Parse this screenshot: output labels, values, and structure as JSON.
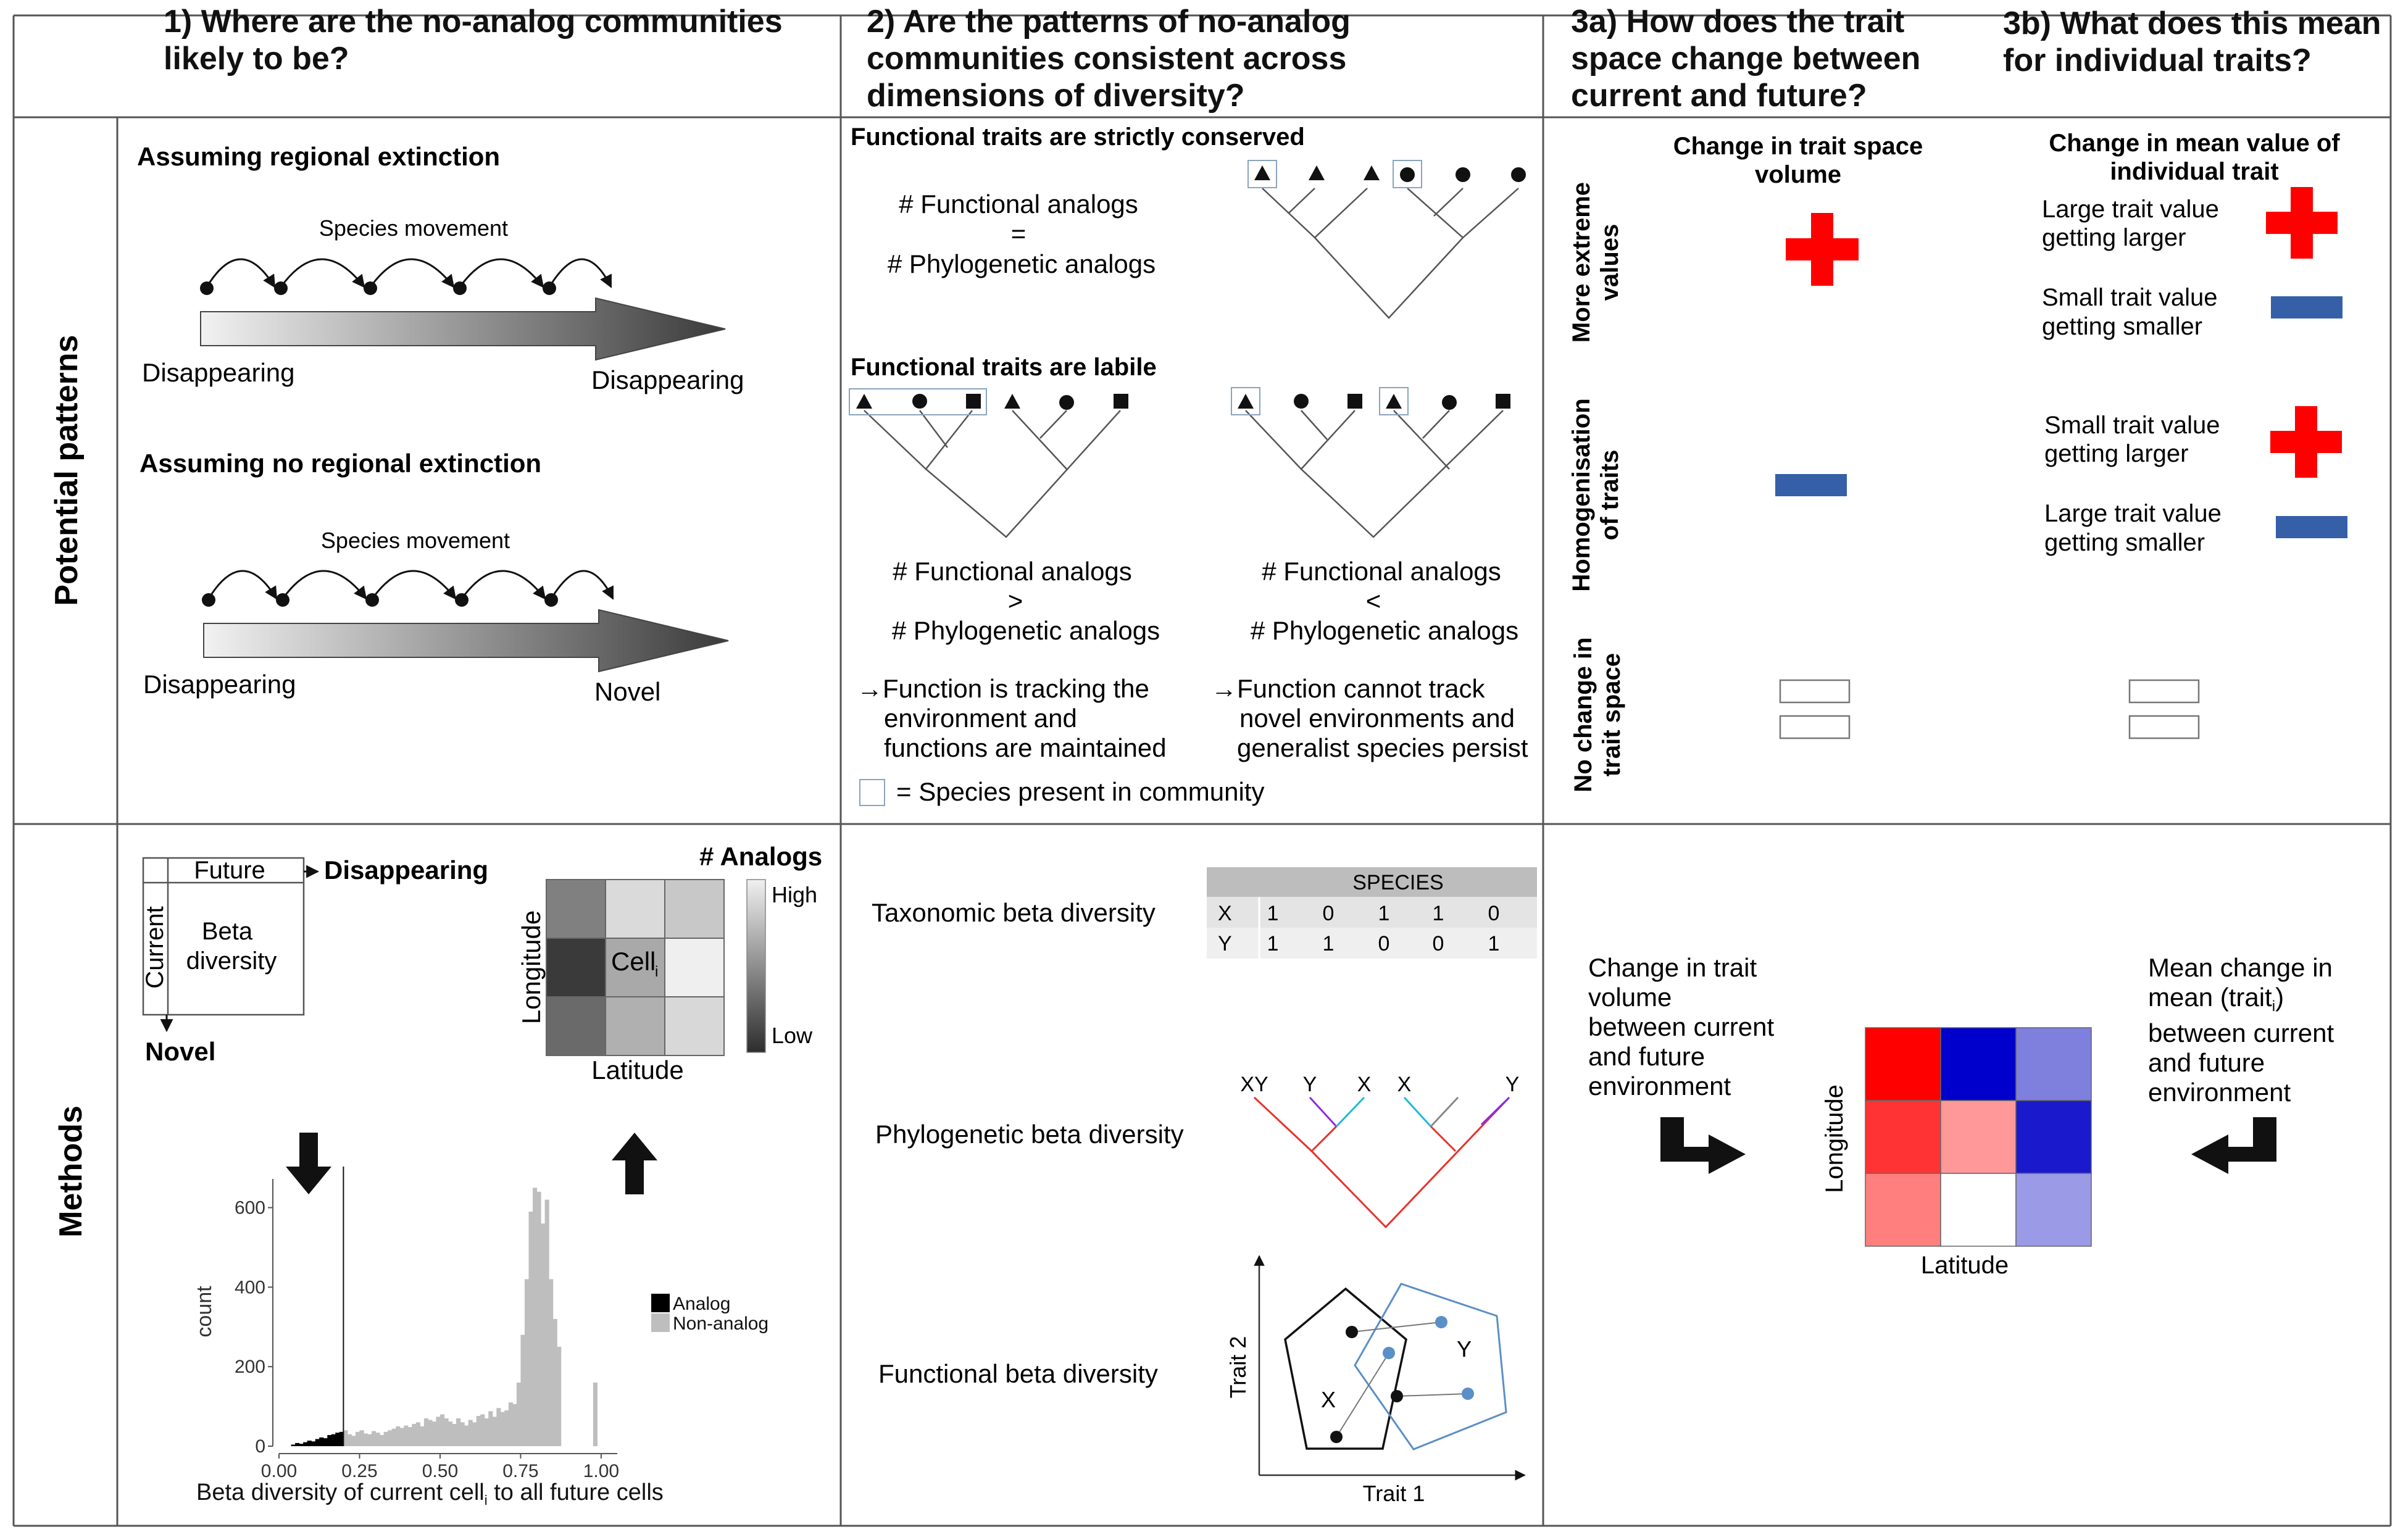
{
  "headers": {
    "col1": [
      "1) Where are the no-analog communities",
      "likely to be?"
    ],
    "col2": [
      "2) Are the patterns of no-analog",
      "communities consistent across",
      "dimensions of diversity?"
    ],
    "col3a": [
      "3a) How does the trait",
      "space change between",
      "current and future?"
    ],
    "col3b": [
      "3b) What does this mean",
      "for individual traits?"
    ]
  },
  "rows": {
    "potential": "Potential patterns",
    "methods": "Methods"
  },
  "p1": {
    "regional_title": "Assuming regional extinction",
    "no_regional_title": "Assuming no regional extinction",
    "species_movement": "Species movement",
    "disappearing": "Disappearing",
    "novel": "Novel"
  },
  "p2": {
    "conserved_title": "Functional traits are strictly conserved",
    "labile_title": "Functional traits are labile",
    "functional_analogs": "# Functional analogs",
    "phylogenetic_analogs": "# Phylogenetic analogs",
    "eq": "=",
    "gt": ">",
    "lt": "<",
    "left_result": [
      "→Function is tracking the",
      "environment and",
      "functions are maintained"
    ],
    "right_result": [
      "→Function cannot track",
      "novel environments and",
      "generalist species persist"
    ],
    "legend": "= Species present in community"
  },
  "p3": {
    "volume_header": [
      "Change in trait space",
      "volume"
    ],
    "mean_header": [
      "Change in mean value of",
      "individual trait"
    ],
    "row_labels": {
      "extreme": [
        "More extreme",
        "values"
      ],
      "homog": [
        "Homogenisation",
        "of traits"
      ],
      "nochange": [
        "No change in",
        "trait space"
      ]
    },
    "large_larger": [
      "Large trait value",
      "getting larger"
    ],
    "small_smaller": [
      "Small trait value",
      "getting smaller"
    ],
    "small_larger": [
      "Small trait value",
      "getting larger"
    ],
    "large_smaller": [
      "Large trait value",
      "getting smaller"
    ]
  },
  "m1": {
    "future": "Future",
    "current": "Current",
    "beta": [
      "Beta",
      "diversity"
    ],
    "disappearing": "Disappearing",
    "novel": "Novel",
    "analogs_title": "# Analogs",
    "high": "High",
    "low": "Low",
    "cell": "Cell",
    "cell_sub": "i",
    "longitude": "Longitude",
    "latitude": "Latitude"
  },
  "m2": {
    "taxonomic": "Taxonomic beta diversity",
    "phylogenetic": "Phylogenetic beta diversity",
    "functional": "Functional beta diversity",
    "species_header": "SPECIES",
    "table_rows": [
      {
        "label": "X",
        "values": [
          "1",
          "0",
          "1",
          "1",
          "0"
        ]
      },
      {
        "label": "Y",
        "values": [
          "1",
          "1",
          "0",
          "0",
          "1"
        ]
      }
    ],
    "tree_tips": [
      "XY",
      "Y",
      "X",
      "X",
      "Y"
    ],
    "trait1": "Trait 1",
    "trait2": "Trait 2",
    "x_label": "X",
    "y_label": "Y"
  },
  "m3": {
    "left_text": [
      "Change in trait",
      "volume",
      "between current",
      "and future",
      "environment"
    ],
    "right_text": [
      "Mean change in",
      "mean (trait",
      "between current",
      "and future",
      "environment"
    ],
    "trait_sub": "i",
    "close_paren": ")",
    "longitude": "Longitude",
    "latitude": "Latitude",
    "heatmap_colors": [
      [
        "#ff0000",
        "#0000cc",
        "#7f7fdd"
      ],
      [
        "#ff3333",
        "#ff9999",
        "#1a1acc"
      ],
      [
        "#ff7f7f",
        "#ffffff",
        "#9a9ae6"
      ]
    ]
  },
  "colors": {
    "plus": "#ff0000",
    "minus": "#3560a8",
    "branch_red": "#e8312a",
    "branch_purple": "#8a2be2",
    "branch_cyan": "#21b8d6",
    "poly_blue": "#5b8fc7",
    "bar_analog": "#000000",
    "bar_nonanalog": "#bebebe"
  },
  "chart_data": {
    "type": "bar",
    "xlabel": "Beta diversity of current cell",
    "xlabel_sub": "i",
    "xlabel_tail": " to all future cells",
    "ylabel": "count",
    "xlim": [
      0.0,
      1.05
    ],
    "ylim": [
      0,
      680
    ],
    "x_ticks": [
      "0.00",
      "0.25",
      "0.50",
      "0.75",
      "1.00"
    ],
    "y_ticks": [
      "0",
      "200",
      "400",
      "600"
    ],
    "threshold": 0.2,
    "bin_width": 0.0125,
    "bin_start": 0.0,
    "counts": [
      0,
      0,
      0,
      4,
      8,
      6,
      10,
      14,
      12,
      18,
      22,
      20,
      28,
      30,
      34,
      36,
      40,
      30,
      26,
      36,
      40,
      32,
      30,
      38,
      34,
      28,
      36,
      40,
      44,
      50,
      46,
      52,
      48,
      56,
      60,
      50,
      70,
      66,
      62,
      74,
      80,
      70,
      62,
      56,
      70,
      60,
      52,
      66,
      60,
      76,
      80,
      70,
      88,
      74,
      96,
      86,
      90,
      110,
      106,
      160,
      280,
      420,
      590,
      650,
      640,
      560,
      620,
      420,
      320,
      250,
      0,
      0,
      0,
      0,
      0,
      0,
      0,
      0,
      160,
      0
    ],
    "series": [
      {
        "name": "Analog"
      },
      {
        "name": "Non-analog"
      }
    ]
  }
}
